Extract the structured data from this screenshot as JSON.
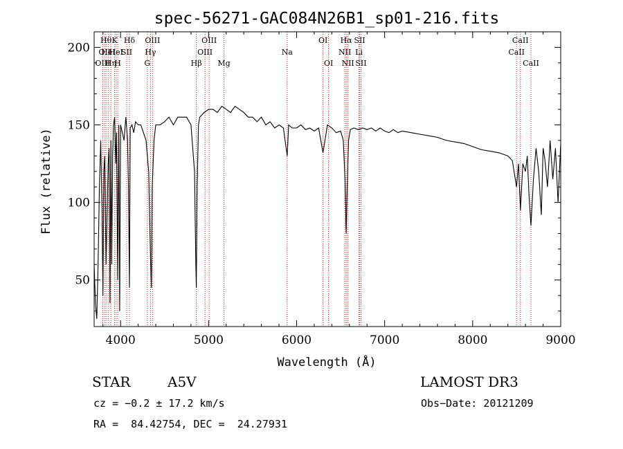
{
  "chart_data": {
    "type": "line",
    "title": "spec-56271-GAC084N26B1_sp01-216.fits",
    "xlabel": "Wavelength (Å)",
    "ylabel": "Flux (relative)",
    "xlim": [
      3700,
      9000
    ],
    "ylim": [
      20,
      210
    ],
    "xticks": [
      4000,
      5000,
      6000,
      7000,
      8000,
      9000
    ],
    "yticks": [
      50,
      100,
      150,
      200
    ],
    "series": [
      {
        "name": "spectrum",
        "x": [
          3700,
          3715,
          3730,
          3745,
          3760,
          3775,
          3790,
          3800,
          3810,
          3820,
          3835,
          3850,
          3860,
          3870,
          3880,
          3890,
          3900,
          3910,
          3920,
          3933,
          3945,
          3955,
          3968,
          3980,
          3990,
          4000,
          4020,
          4040,
          4060,
          4080,
          4090,
          4101,
          4110,
          4130,
          4150,
          4170,
          4200,
          4230,
          4260,
          4290,
          4320,
          4340,
          4350,
          4360,
          4380,
          4400,
          4450,
          4500,
          4550,
          4600,
          4650,
          4700,
          4750,
          4800,
          4840,
          4855,
          4861,
          4870,
          4885,
          4900,
          4950,
          5000,
          5050,
          5100,
          5150,
          5200,
          5250,
          5300,
          5350,
          5400,
          5450,
          5500,
          5550,
          5600,
          5650,
          5700,
          5750,
          5800,
          5850,
          5893,
          5910,
          5950,
          6000,
          6050,
          6100,
          6150,
          6200,
          6250,
          6300,
          6350,
          6400,
          6450,
          6500,
          6530,
          6550,
          6563,
          6575,
          6590,
          6610,
          6650,
          6700,
          6750,
          6800,
          6850,
          6900,
          6950,
          7000,
          7050,
          7100,
          7150,
          7200,
          7300,
          7400,
          7500,
          7600,
          7700,
          7800,
          7900,
          8000,
          8100,
          8200,
          8300,
          8400,
          8450,
          8498,
          8520,
          8542,
          8570,
          8600,
          8620,
          8640,
          8662,
          8690,
          8720,
          8750,
          8780,
          8800,
          8820,
          8850,
          8880,
          8910,
          8940,
          8970,
          9000
        ],
        "y": [
          60,
          35,
          25,
          60,
          110,
          140,
          95,
          40,
          120,
          130,
          60,
          100,
          125,
          135,
          35,
          140,
          60,
          130,
          150,
          155,
          125,
          145,
          50,
          150,
          30,
          150,
          145,
          140,
          155,
          140,
          110,
          45,
          148,
          150,
          145,
          152,
          150,
          150,
          145,
          140,
          120,
          65,
          45,
          110,
          140,
          150,
          150,
          152,
          155,
          150,
          155,
          155,
          155,
          150,
          120,
          60,
          45,
          110,
          150,
          155,
          158,
          160,
          160,
          158,
          162,
          160,
          158,
          162,
          160,
          158,
          155,
          155,
          152,
          155,
          150,
          152,
          148,
          150,
          148,
          130,
          150,
          148,
          148,
          150,
          147,
          148,
          146,
          148,
          132,
          150,
          148,
          145,
          146,
          140,
          115,
          80,
          110,
          140,
          147,
          148,
          147,
          148,
          147,
          148,
          146,
          148,
          146,
          145,
          147,
          145,
          146,
          145,
          144,
          143,
          142,
          140,
          139,
          138,
          136,
          134,
          133,
          132,
          130,
          127,
          110,
          125,
          95,
          125,
          120,
          130,
          105,
          85,
          115,
          135,
          120,
          92,
          135,
          128,
          110,
          140,
          115,
          135,
          100,
          138
        ]
      }
    ],
    "lines": [
      {
        "wave": 3798,
        "label": "OIII",
        "row": 3
      },
      {
        "wave": 3820,
        "label": "OII",
        "row": 2
      },
      {
        "wave": 3835,
        "label": "Hθ",
        "row": 1
      },
      {
        "wave": 3860,
        "label": "HeI",
        "row": 2
      },
      {
        "wave": 3889,
        "label": "Hη",
        "row": 3
      },
      {
        "wave": 3933,
        "label": "K",
        "row": 1
      },
      {
        "wave": 3950,
        "label": "HeI",
        "row": 2
      },
      {
        "wave": 3968,
        "label": "H",
        "row": 3
      },
      {
        "wave": 4070,
        "label": "SII",
        "row": 2
      },
      {
        "wave": 4101,
        "label": "Hδ",
        "row": 1
      },
      {
        "wave": 4304,
        "label": "G",
        "row": 3
      },
      {
        "wave": 4340,
        "label": "Hγ",
        "row": 2
      },
      {
        "wave": 4363,
        "label": "OIII",
        "row": 1
      },
      {
        "wave": 4861,
        "label": "Hβ",
        "row": 3
      },
      {
        "wave": 4959,
        "label": "OIII",
        "row": 2
      },
      {
        "wave": 5007,
        "label": "OIII",
        "row": 1
      },
      {
        "wave": 5175,
        "label": "Mg",
        "row": 3
      },
      {
        "wave": 5893,
        "label": "Na",
        "row": 2
      },
      {
        "wave": 6300,
        "label": "OI",
        "row": 1
      },
      {
        "wave": 6363,
        "label": "OI",
        "row": 3
      },
      {
        "wave": 6548,
        "label": "NII",
        "row": 2
      },
      {
        "wave": 6563,
        "label": "Hα",
        "row": 1
      },
      {
        "wave": 6583,
        "label": "NII",
        "row": 3
      },
      {
        "wave": 6708,
        "label": "Li",
        "row": 2
      },
      {
        "wave": 6716,
        "label": "SII",
        "row": 1
      },
      {
        "wave": 6731,
        "label": "SII",
        "row": 3
      },
      {
        "wave": 8498,
        "label": "CaII",
        "row": 2
      },
      {
        "wave": 8542,
        "label": "CaII",
        "row": 1
      },
      {
        "wave": 8662,
        "label": "CaII",
        "row": 3
      }
    ]
  },
  "info": {
    "object_type": "STAR",
    "spectral_class": "A5V",
    "survey": "LAMOST DR3",
    "cz": "cz = −0.2 ± 17.2 km/s",
    "obs_date": "Obs−Date: 20121209",
    "radec": "RA =  84.42754, DEC =  24.27931"
  },
  "colors": {
    "line": "#cc2222",
    "spectrum": "#000000",
    "axis": "#000000"
  }
}
